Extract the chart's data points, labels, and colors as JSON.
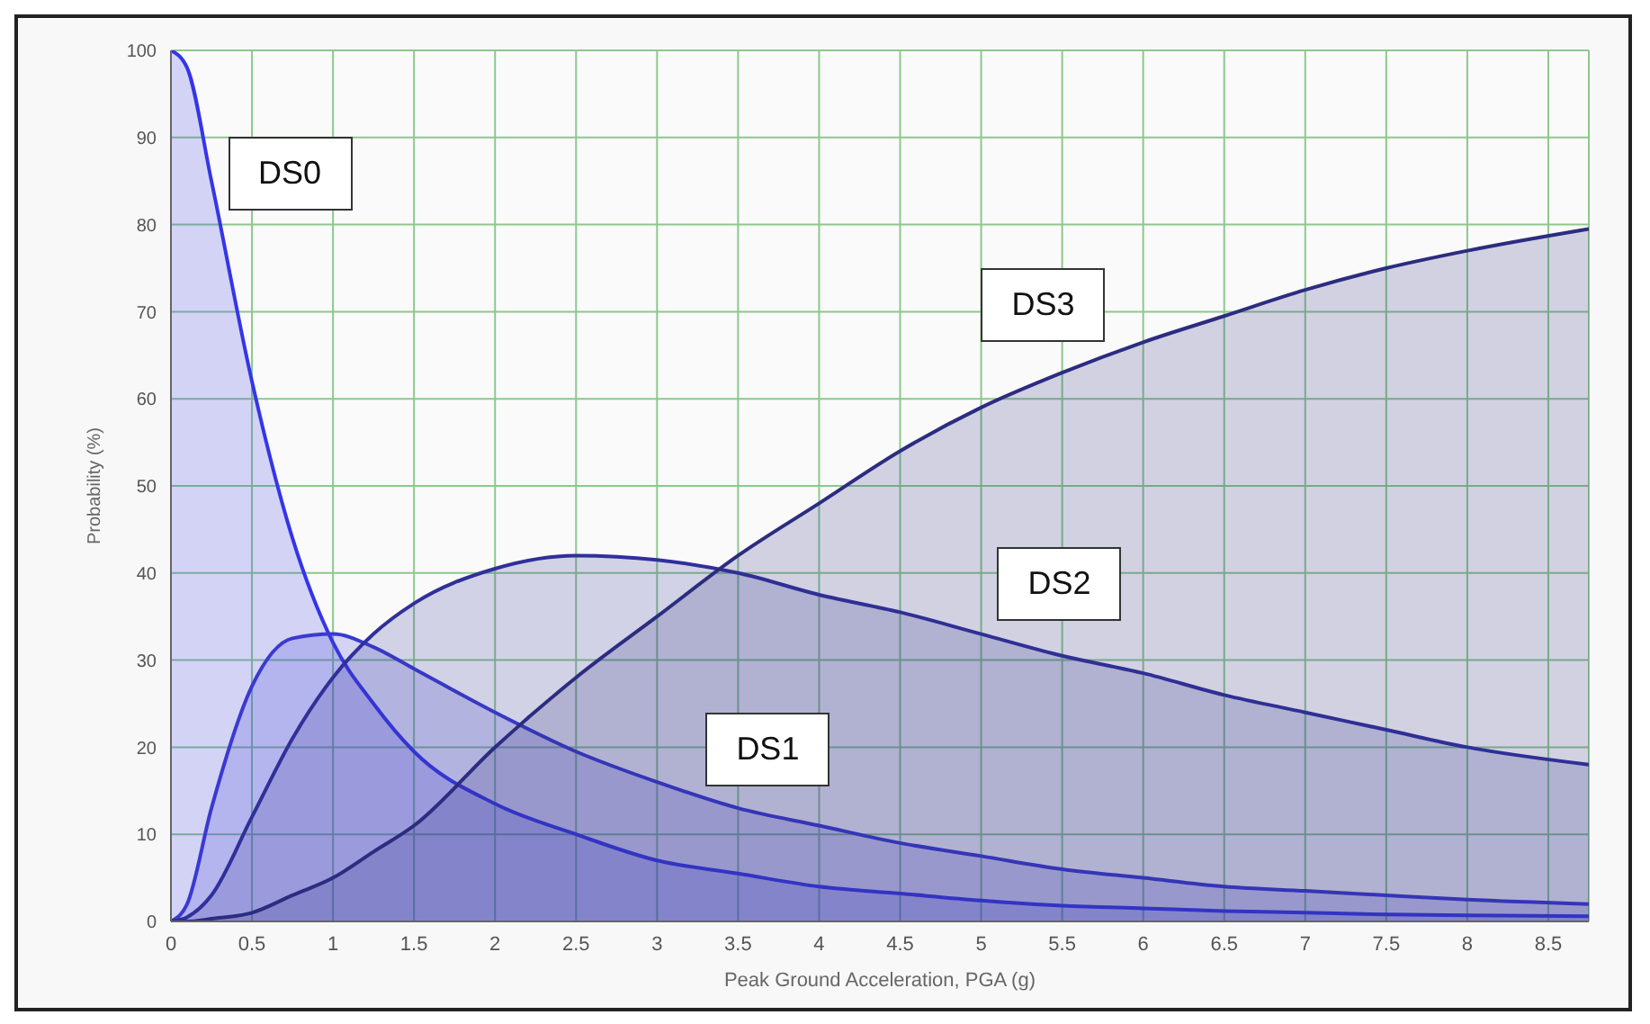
{
  "chart_data": {
    "type": "area",
    "xlabel": "Peak Ground Acceleration, PGA (g)",
    "ylabel": "Probability (%)",
    "x": [
      0,
      0.1,
      0.25,
      0.5,
      0.75,
      1,
      1.25,
      1.5,
      2,
      2.5,
      3,
      3.5,
      4,
      4.5,
      5,
      5.5,
      6,
      6.5,
      7,
      7.5,
      8,
      8.75
    ],
    "series": [
      {
        "name": "DS0",
        "color": "#3535e8",
        "values": [
          100,
          98,
          85,
          62,
          44,
          32,
          25,
          19.5,
          13.5,
          10,
          7,
          5.5,
          4,
          3.2,
          2.4,
          1.8,
          1.5,
          1.2,
          1,
          0.8,
          0.7,
          0.6
        ]
      },
      {
        "name": "DS1",
        "color": "#3a3ad0",
        "values": [
          0,
          2,
          13,
          27,
          32.5,
          33,
          31.5,
          29,
          24,
          19.5,
          16,
          13,
          11,
          9,
          7.5,
          6,
          5,
          4,
          3.5,
          3,
          2.5,
          2
        ]
      },
      {
        "name": "DS2",
        "color": "#30309a",
        "values": [
          0,
          0.5,
          3,
          12,
          21,
          28,
          33,
          36.5,
          40.5,
          42,
          41.5,
          40,
          37.5,
          35.5,
          33,
          30.5,
          28.5,
          26,
          24,
          22,
          20,
          18
        ]
      },
      {
        "name": "DS3",
        "color": "#2c2c80",
        "values": [
          0,
          0,
          0.3,
          1,
          3,
          5,
          8,
          11,
          20,
          28,
          35,
          42,
          48,
          54,
          59,
          63,
          66.5,
          69.5,
          72.5,
          75,
          77,
          79.5
        ]
      }
    ],
    "xlim": [
      0,
      8.75
    ],
    "xticks": [
      0,
      0.5,
      1,
      1.5,
      2,
      2.5,
      3,
      3.5,
      4,
      4.5,
      5,
      5.5,
      6,
      6.5,
      7,
      7.5,
      8,
      8.5
    ],
    "ylim": [
      0,
      100
    ],
    "yticks": [
      0,
      10,
      20,
      30,
      40,
      50,
      60,
      70,
      80,
      90,
      100
    ],
    "grid": true,
    "marker": "none",
    "line_style": "solid"
  }
}
